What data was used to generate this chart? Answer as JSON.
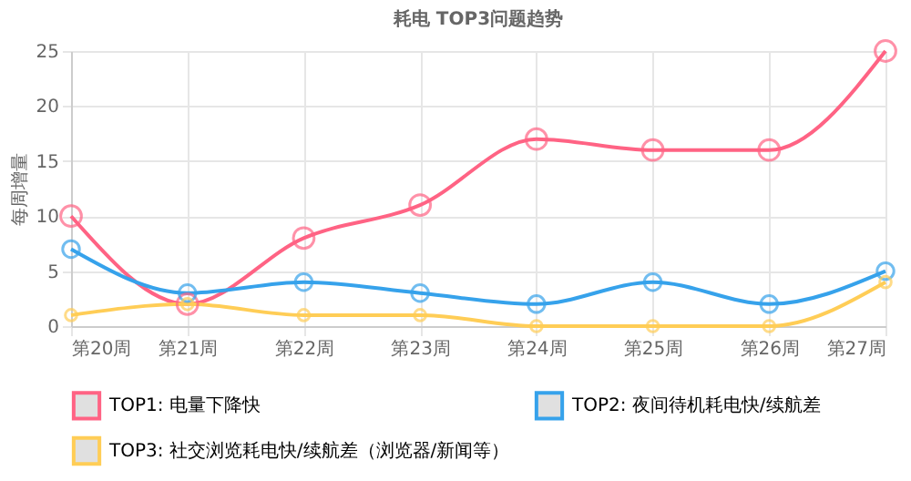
{
  "chart_data": {
    "type": "line",
    "title": "耗电 TOP3问题趋势",
    "ylabel": "每周增量",
    "categories": [
      "第20周",
      "第21周",
      "第22周",
      "第23周",
      "第24周",
      "第25周",
      "第26周",
      "第27周"
    ],
    "series": [
      {
        "name": "TOP1: 电量下降快",
        "color": "#ff6384",
        "values": [
          10,
          2,
          8,
          11,
          17,
          16,
          16,
          25
        ]
      },
      {
        "name": "TOP2: 夜间待机耗电快/续航差",
        "color": "#36a2eb",
        "values": [
          7,
          3,
          4,
          3,
          2,
          4,
          2,
          5
        ]
      },
      {
        "name": "TOP3: 社交浏览耗电快/续航差（浏览器/新闻等）",
        "color": "#ffcd56",
        "values": [
          1,
          2,
          1,
          1,
          0,
          0,
          0,
          4
        ]
      }
    ],
    "ylim": [
      0,
      25
    ],
    "yticks": [
      0,
      5,
      10,
      15,
      20,
      25
    ],
    "grid": true,
    "legend": "bottom",
    "marker": "circle",
    "line_style": "solid"
  }
}
